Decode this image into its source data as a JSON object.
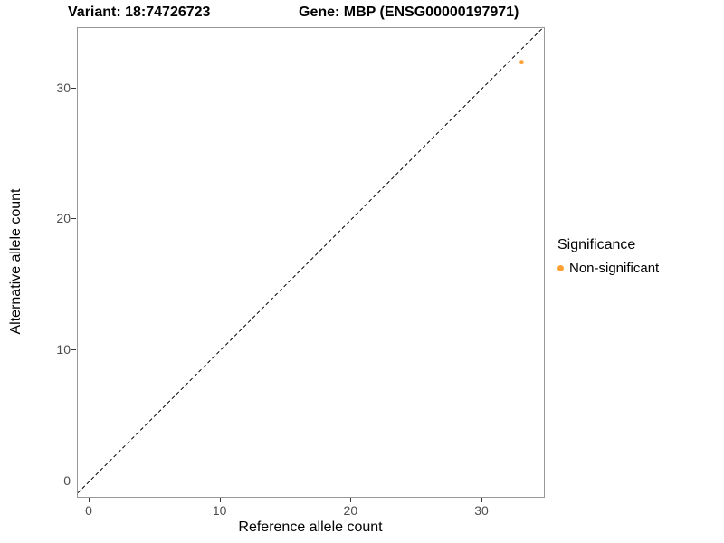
{
  "chart_data": {
    "type": "scatter",
    "title_left": "Variant: 18:74726723",
    "title_right": "Gene: MBP (ENSG00000197971)",
    "xlabel": "Reference allele count",
    "ylabel": "Alternative allele count",
    "x_ticks": [
      0,
      10,
      20,
      30
    ],
    "y_ticks": [
      0,
      10,
      20,
      30
    ],
    "xlim": [
      -0.9,
      34.7
    ],
    "ylim": [
      -1.2,
      34.6
    ],
    "grid": false,
    "panel_border_color": "#979797",
    "points": [
      {
        "x": 33,
        "y": 32,
        "series": "Non-significant",
        "color": "#FFA033"
      }
    ],
    "identity_line": {
      "equation": "y = x",
      "style": "dashed",
      "color": "#000000"
    },
    "legend": {
      "title": "Significance",
      "position": "right",
      "items": [
        {
          "label": "Non-significant",
          "color": "#FFA033"
        }
      ]
    }
  }
}
